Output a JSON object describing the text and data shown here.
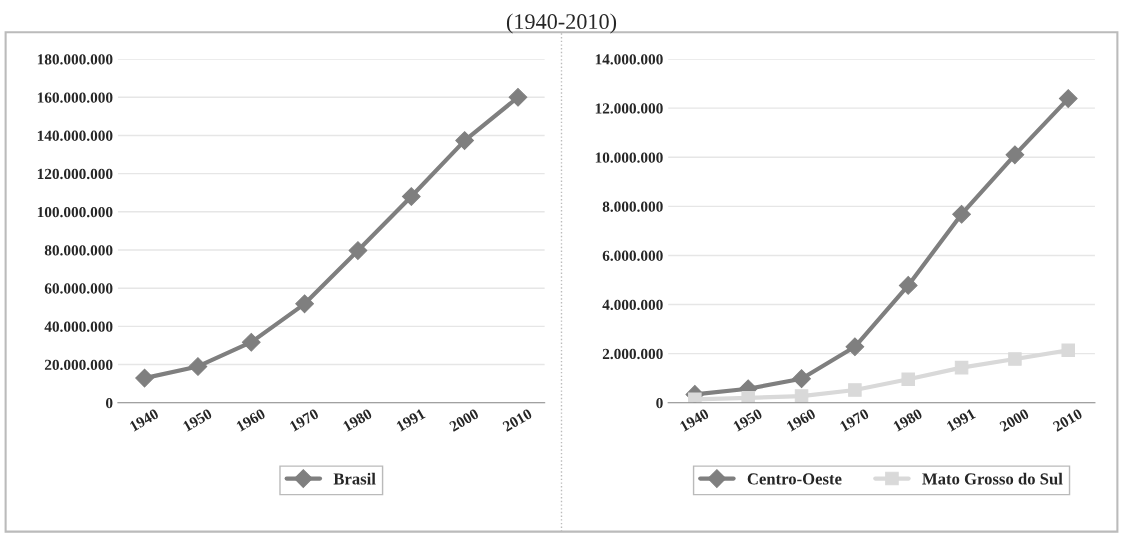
{
  "chart_data": [
    {
      "type": "line",
      "title": "(1940-2010)",
      "categories": [
        "1940",
        "1950",
        "1960",
        "1970",
        "1980",
        "1991",
        "2000",
        "2010"
      ],
      "series": [
        {
          "name": "Brasil",
          "color": "#7f7f7f",
          "marker": "diamond",
          "values": [
            12900000,
            19000000,
            31700000,
            51800000,
            79700000,
            108000000,
            137300000,
            160000000
          ]
        }
      ],
      "ylim": [
        0,
        180000000
      ],
      "yticks": [
        {
          "value": 0,
          "label": "0"
        },
        {
          "value": 20000000,
          "label": "20.000.000"
        },
        {
          "value": 40000000,
          "label": "40.000.000"
        },
        {
          "value": 60000000,
          "label": "60.000.000"
        },
        {
          "value": 80000000,
          "label": "80.000.000"
        },
        {
          "value": 100000000,
          "label": "100.000.000"
        },
        {
          "value": 120000000,
          "label": "120.000.000"
        },
        {
          "value": 140000000,
          "label": "140.000.000"
        },
        {
          "value": 160000000,
          "label": "160.000.000"
        },
        {
          "value": 180000000,
          "label": "180.000.000"
        }
      ],
      "grid": "y",
      "legend": "bottom"
    },
    {
      "type": "line",
      "categories": [
        "1940",
        "1950",
        "1960",
        "1970",
        "1980",
        "1991",
        "2000",
        "2010"
      ],
      "series": [
        {
          "name": "Centro-Oeste",
          "color": "#7f7f7f",
          "marker": "diamond",
          "values": [
            340000,
            570000,
            980000,
            2280000,
            4780000,
            7680000,
            10100000,
            12390000
          ]
        },
        {
          "name": "Mato Grosso do Sul",
          "color": "#d9d9d9",
          "marker": "square",
          "values": [
            140000,
            200000,
            270000,
            520000,
            960000,
            1430000,
            1780000,
            2140000
          ]
        }
      ],
      "ylim": [
        0,
        14000000
      ],
      "yticks": [
        {
          "value": 0,
          "label": "0"
        },
        {
          "value": 2000000,
          "label": "2.000.000"
        },
        {
          "value": 4000000,
          "label": "4.000.000"
        },
        {
          "value": 6000000,
          "label": "6.000.000"
        },
        {
          "value": 8000000,
          "label": "8.000.000"
        },
        {
          "value": 10000000,
          "label": "10.000.000"
        },
        {
          "value": 12000000,
          "label": "12.000.000"
        },
        {
          "value": 14000000,
          "label": "14.000.000"
        }
      ],
      "grid": "y",
      "legend": "bottom"
    }
  ]
}
